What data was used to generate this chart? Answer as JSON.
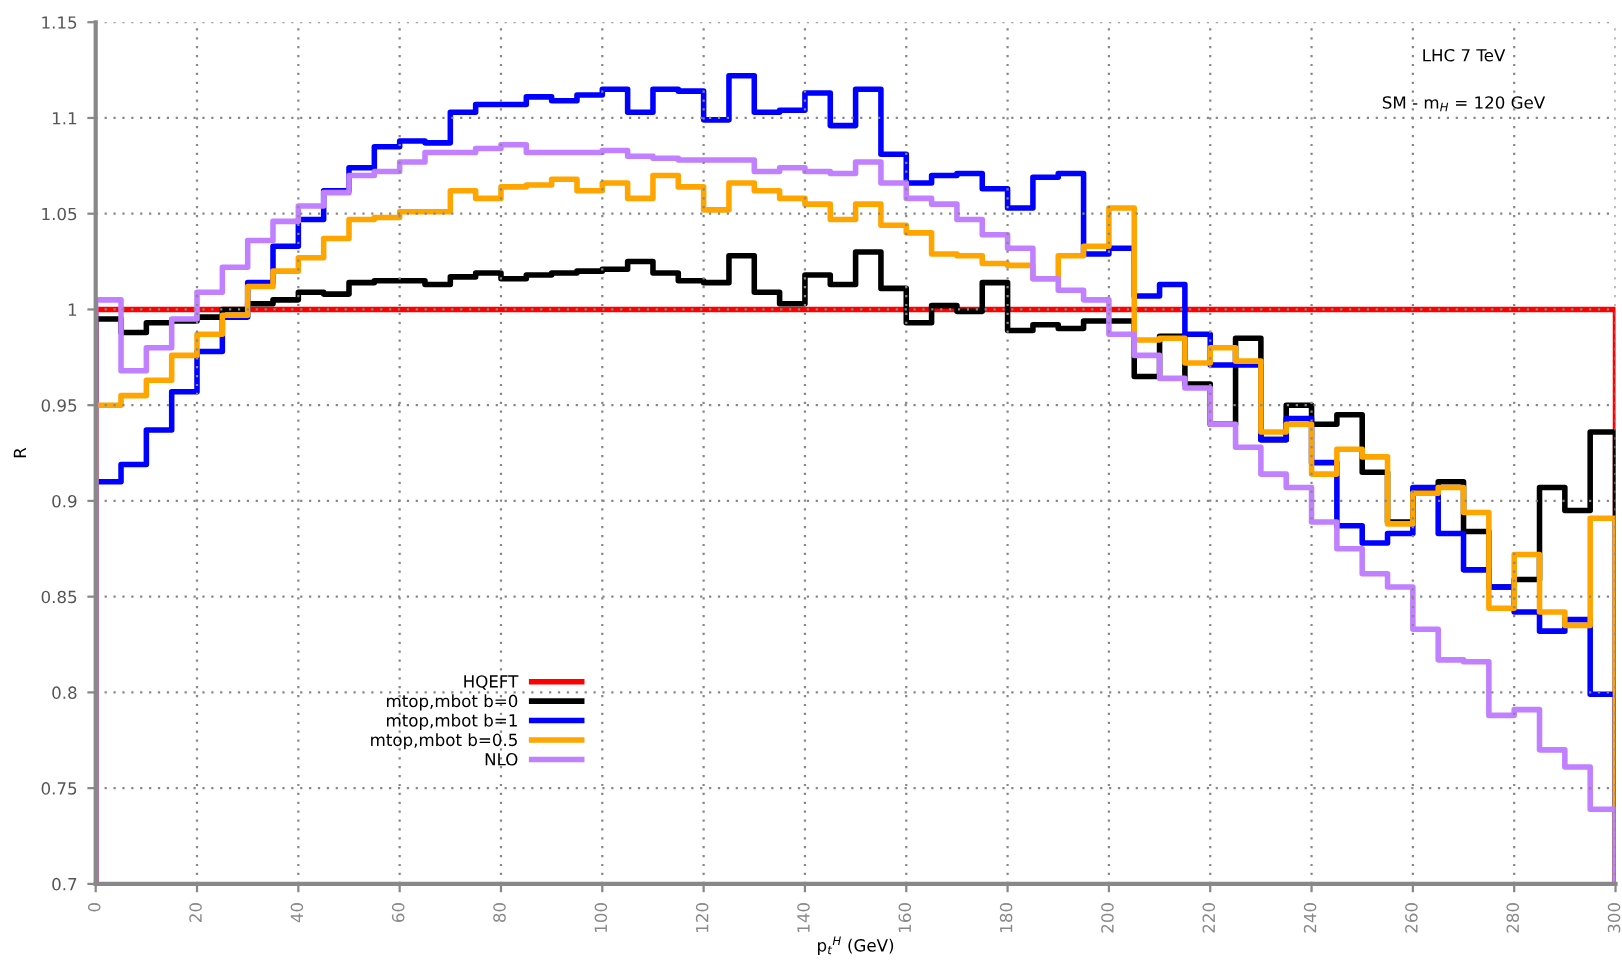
{
  "chart_data": {
    "type": "histogram",
    "xlabel": "p$_{t}$$^{H}$ (GeV)",
    "ylabel": "R",
    "annotations": [
      "LHC 7 TeV",
      "SM - m$_{H}$ = 120 GeV"
    ],
    "bins": [
      0,
      5,
      10,
      15,
      20,
      25,
      30,
      35,
      40,
      45,
      50,
      55,
      60,
      65,
      70,
      75,
      80,
      85,
      90,
      95,
      100,
      105,
      110,
      115,
      120,
      125,
      130,
      135,
      140,
      145,
      150,
      155,
      160,
      165,
      170,
      175,
      180,
      185,
      190,
      195,
      200,
      205,
      210,
      215,
      220,
      225,
      230,
      235,
      240,
      245,
      250,
      255,
      260,
      265,
      270,
      275,
      280,
      285,
      290,
      295,
      300
    ],
    "series": [
      {
        "name": "HQEFT",
        "color": "#ff0000",
        "values": [
          1,
          1,
          1,
          1,
          1,
          1,
          1,
          1,
          1,
          1,
          1,
          1,
          1,
          1,
          1,
          1,
          1,
          1,
          1,
          1,
          1,
          1,
          1,
          1,
          1,
          1,
          1,
          1,
          1,
          1,
          1,
          1,
          1,
          1,
          1,
          1,
          1,
          1,
          1,
          1,
          1,
          1,
          1,
          1,
          1,
          1,
          1,
          1,
          1,
          1,
          1,
          1,
          1,
          1,
          1,
          1,
          1,
          1,
          1,
          1
        ]
      },
      {
        "name": "mtop,mbot b=0",
        "color": "#000000",
        "values": [
          0.995,
          0.988,
          0.993,
          0.994,
          0.996,
          1.0,
          1.003,
          1.005,
          1.009,
          1.008,
          1.014,
          1.015,
          1.015,
          1.013,
          1.017,
          1.019,
          1.016,
          1.018,
          1.019,
          1.02,
          1.021,
          1.025,
          1.019,
          1.015,
          1.014,
          1.028,
          1.009,
          1.003,
          1.018,
          1.013,
          1.03,
          1.011,
          0.993,
          1.002,
          0.999,
          1.014,
          0.989,
          0.992,
          0.99,
          0.994,
          0.994,
          0.965,
          0.986,
          0.961,
          0.94,
          0.985,
          0.932,
          0.95,
          0.94,
          0.945,
          0.915,
          0.889,
          0.906,
          0.91,
          0.884,
          0.855,
          0.859,
          0.907,
          0.895,
          0.936
        ]
      },
      {
        "name": "mtop,mbot b=1",
        "color": "#0000ff",
        "values": [
          0.91,
          0.919,
          0.937,
          0.957,
          0.978,
          0.996,
          1.014,
          1.033,
          1.047,
          1.062,
          1.074,
          1.085,
          1.088,
          1.087,
          1.103,
          1.107,
          1.107,
          1.111,
          1.109,
          1.112,
          1.115,
          1.103,
          1.115,
          1.114,
          1.099,
          1.122,
          1.103,
          1.104,
          1.113,
          1.096,
          1.115,
          1.081,
          1.066,
          1.07,
          1.071,
          1.063,
          1.053,
          1.069,
          1.071,
          1.029,
          1.032,
          1.007,
          1.013,
          0.987,
          0.971,
          0.971,
          0.932,
          0.943,
          0.92,
          0.887,
          0.878,
          0.883,
          0.907,
          0.883,
          0.864,
          0.855,
          0.842,
          0.832,
          0.838,
          0.799
        ]
      },
      {
        "name": "mtop,mbot b=0.5",
        "color": "#ffa500",
        "values": [
          0.95,
          0.955,
          0.963,
          0.976,
          0.987,
          0.997,
          1.012,
          1.02,
          1.027,
          1.037,
          1.047,
          1.048,
          1.051,
          1.051,
          1.062,
          1.058,
          1.064,
          1.065,
          1.068,
          1.062,
          1.066,
          1.058,
          1.07,
          1.064,
          1.052,
          1.066,
          1.062,
          1.058,
          1.055,
          1.047,
          1.055,
          1.044,
          1.04,
          1.029,
          1.028,
          1.024,
          1.023,
          1.016,
          1.028,
          1.033,
          1.053,
          0.984,
          0.985,
          0.972,
          0.98,
          0.973,
          0.936,
          0.94,
          0.914,
          0.927,
          0.923,
          0.888,
          0.904,
          0.907,
          0.894,
          0.844,
          0.872,
          0.842,
          0.835,
          0.891
        ]
      },
      {
        "name": "NLO",
        "color": "#c080ff",
        "values": [
          1.005,
          0.968,
          0.98,
          0.995,
          1.009,
          1.022,
          1.036,
          1.046,
          1.054,
          1.061,
          1.07,
          1.072,
          1.077,
          1.082,
          1.082,
          1.084,
          1.086,
          1.082,
          1.082,
          1.082,
          1.083,
          1.08,
          1.079,
          1.078,
          1.078,
          1.078,
          1.072,
          1.074,
          1.072,
          1.071,
          1.077,
          1.066,
          1.058,
          1.055,
          1.047,
          1.039,
          1.032,
          1.016,
          1.01,
          1.005,
          0.987,
          0.976,
          0.964,
          0.959,
          0.94,
          0.928,
          0.914,
          0.907,
          0.889,
          0.875,
          0.862,
          0.855,
          0.833,
          0.817,
          0.816,
          0.788,
          0.791,
          0.77,
          0.761,
          0.739
        ]
      }
    ],
    "xlim": [
      0,
      300
    ],
    "ylim": [
      0.7,
      1.15
    ],
    "xticks": [
      0,
      20,
      40,
      60,
      80,
      100,
      120,
      140,
      160,
      180,
      200,
      220,
      240,
      260,
      280,
      300
    ],
    "yticks": [
      0.7,
      0.75,
      0.8,
      0.85,
      0.9,
      0.95,
      1,
      1.05,
      1.1,
      1.15
    ],
    "grid": true,
    "legend": "bottom left",
    "line_style": "solid"
  }
}
